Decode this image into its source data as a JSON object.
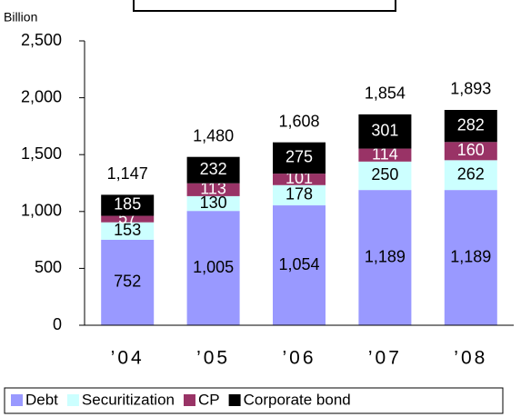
{
  "chart_data": {
    "type": "stacked_bar",
    "y_label": "Billion",
    "categories": [
      "’04",
      "’05",
      "’06",
      "’07",
      "’08"
    ],
    "series": [
      {
        "name": "Debt",
        "color": "#9999ff",
        "values": [
          752,
          1005,
          1054,
          1189,
          1189
        ],
        "value_labels": [
          "752",
          "1,005",
          "1,054",
          "1,189",
          "1,189"
        ]
      },
      {
        "name": "Securitization",
        "color": "#ccffff",
        "values": [
          153,
          130,
          178,
          250,
          262
        ]
      },
      {
        "name": "CP",
        "color": "#993366",
        "values": [
          57,
          113,
          101,
          114,
          160
        ]
      },
      {
        "name": "Corporate bond",
        "color": "#000000",
        "values": [
          185,
          232,
          275,
          301,
          282
        ]
      }
    ],
    "totals": [
      1147,
      1480,
      1608,
      1854,
      1893
    ],
    "total_labels": [
      "1,147",
      "1,480",
      "1,608",
      "1,854",
      "1,893"
    ],
    "ylim": [
      0,
      2500
    ],
    "yticks": [
      0,
      500,
      {
        "value": 1000,
        "label": "1,000"
      },
      {
        "value": 1500,
        "label": "1,500"
      },
      {
        "value": 2000,
        "label": "2,000"
      },
      {
        "value": 2500,
        "label": "2,500"
      }
    ],
    "grid": false,
    "legend": "bottom"
  }
}
